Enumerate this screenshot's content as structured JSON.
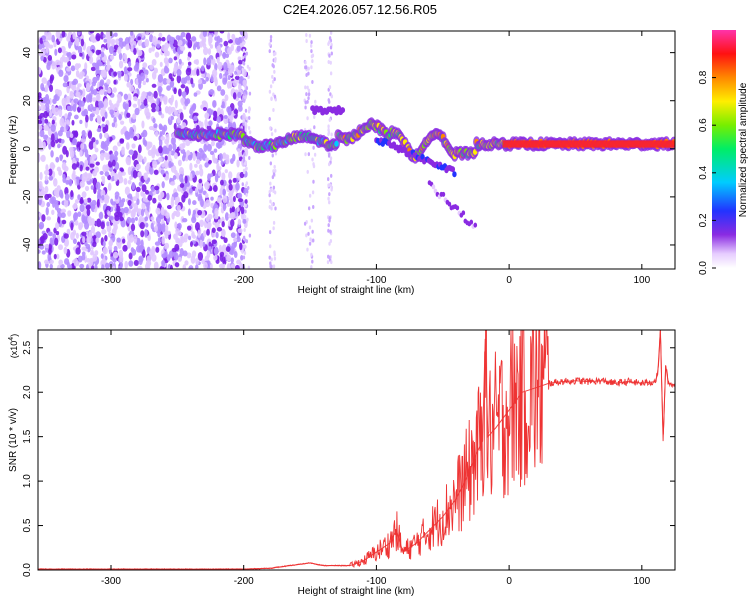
{
  "title": "C2E4.2026.057.12.56.R05",
  "chart_data": [
    {
      "type": "heatmap",
      "name": "spectrogram",
      "xlabel": "Height of straight line (km)",
      "ylabel": "Frequency (Hz)",
      "xlim": [
        -355,
        125
      ],
      "ylim": [
        -50,
        49
      ],
      "xticks": [
        -300,
        -200,
        -100,
        0,
        100
      ],
      "xtick_labels": [
        "-300",
        "-200",
        "-100",
        "0",
        "100"
      ],
      "yticks": [
        -40,
        -20,
        0,
        20,
        40
      ],
      "ytick_labels": [
        "-40",
        "-20",
        "0",
        "20",
        "40"
      ],
      "colorbar": {
        "label": "Normalized spectral amplitude",
        "range": [
          0,
          1
        ],
        "ticks": [
          0.0,
          0.2,
          0.4,
          0.6,
          0.8
        ],
        "tick_labels": [
          "0.0",
          "0.2",
          "0.4",
          "0.6",
          "0.8"
        ],
        "colormap": "rainbow (white-violet-blue-cyan-green-yellow-red-magenta)"
      },
      "features": [
        {
          "label": "noise region",
          "x_range": [
            -355,
            -200
          ],
          "freq_range": [
            -50,
            49
          ],
          "amplitude": 0.05
        },
        {
          "label": "signal band",
          "x_range": [
            -250,
            125
          ],
          "center_freq": 2,
          "amplitude": 0.8
        },
        {
          "label": "branch",
          "x_range": [
            -100,
            -40
          ],
          "freq_range": [
            -15,
            10
          ]
        }
      ]
    },
    {
      "type": "line",
      "name": "snr",
      "xlabel": "Height of straight line (km)",
      "ylabel": "SNR (10 * v/v)",
      "y_multiplier_label": "(x10",
      "y_multiplier_exp": "4",
      "y_multiplier_close": ")",
      "xlim": [
        -355,
        125
      ],
      "ylim": [
        0,
        2.7
      ],
      "xticks": [
        -300,
        -200,
        -100,
        0,
        100
      ],
      "xtick_labels": [
        "-300",
        "-200",
        "-100",
        "0",
        "100"
      ],
      "yticks": [
        0,
        0.5,
        1.0,
        1.5,
        2.0,
        2.5
      ],
      "ytick_labels": [
        "0.0",
        "0.5",
        "1.0",
        "1.5",
        "2.0",
        "2.5"
      ],
      "color": "#ee3333",
      "series": [
        {
          "name": "SNR",
          "x": [
            -355,
            -300,
            -250,
            -200,
            -180,
            -160,
            -150,
            -140,
            -120,
            -110,
            -100,
            -90,
            -85,
            -80,
            -70,
            -60,
            -50,
            -45,
            -40,
            -35,
            -30,
            -25,
            -20,
            -18,
            -16,
            -10,
            -5,
            0,
            5,
            10,
            20,
            30,
            40,
            50,
            60,
            70,
            80,
            90,
            100,
            110,
            112,
            114,
            116,
            118,
            120,
            125
          ],
          "y": [
            0.01,
            0.01,
            0.01,
            0.01,
            0.02,
            0.06,
            0.08,
            0.05,
            0.05,
            0.1,
            0.2,
            0.3,
            0.45,
            0.2,
            0.3,
            0.45,
            0.6,
            0.7,
            0.8,
            0.95,
            1.1,
            1.3,
            1.45,
            2.6,
            1.5,
            1.6,
            1.7,
            1.8,
            1.9,
            2.0,
            2.05,
            2.1,
            2.12,
            2.13,
            2.12,
            2.13,
            2.1,
            2.12,
            2.1,
            2.12,
            2.2,
            2.7,
            1.45,
            2.3,
            2.1,
            2.08
          ]
        }
      ]
    }
  ]
}
